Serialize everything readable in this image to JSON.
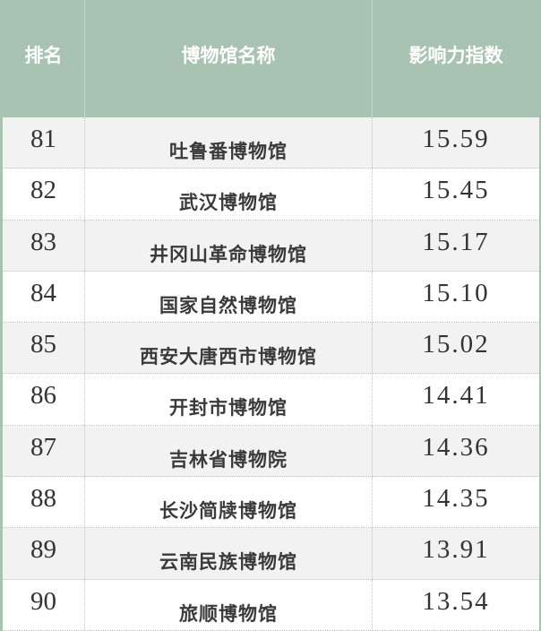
{
  "header": {
    "rank": "排名",
    "name": "博物馆名称",
    "score": "影响力指数"
  },
  "colors": {
    "header_bg": "#a9c3b2",
    "stripe": "#f2f2f2"
  },
  "rows": [
    {
      "rank": "81",
      "name": "吐鲁番博物馆",
      "score": "15.59"
    },
    {
      "rank": "82",
      "name": "武汉博物馆",
      "score": "15.45"
    },
    {
      "rank": "83",
      "name": "井冈山革命博物馆",
      "score": "15.17"
    },
    {
      "rank": "84",
      "name": "国家自然博物馆",
      "score": "15.10"
    },
    {
      "rank": "85",
      "name": "西安大唐西市博物馆",
      "score": "15.02"
    },
    {
      "rank": "86",
      "name": "开封市博物馆",
      "score": "14.41"
    },
    {
      "rank": "87",
      "name": "吉林省博物院",
      "score": "14.36"
    },
    {
      "rank": "88",
      "name": "长沙简牍博物馆",
      "score": "14.35"
    },
    {
      "rank": "89",
      "name": "云南民族博物馆",
      "score": "13.91"
    },
    {
      "rank": "90",
      "name": "旅顺博物馆",
      "score": "13.54"
    }
  ]
}
